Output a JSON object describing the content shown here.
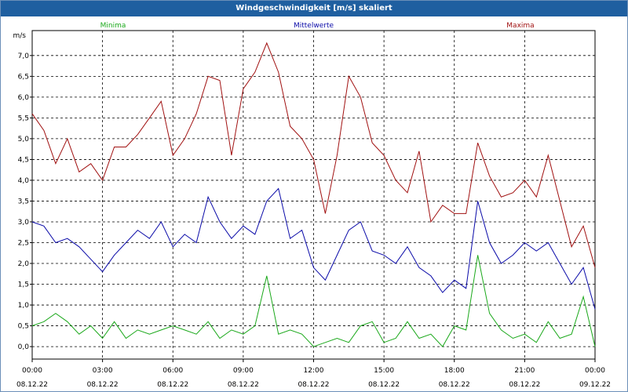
{
  "window": {
    "title": "Windgeschwindigkeit [m/s] skaliert"
  },
  "chart_data": {
    "type": "line",
    "title": "Windgeschwindigkeit [m/s] skaliert",
    "ylabel": "m/s",
    "xlabel": "",
    "ylim": [
      -0.3,
      7.6
    ],
    "xlim": [
      0,
      24
    ],
    "grid": true,
    "legend": "top",
    "yticks": [
      {
        "v": 0.0,
        "label": "0,0"
      },
      {
        "v": 0.5,
        "label": "0,5"
      },
      {
        "v": 1.0,
        "label": "1,0"
      },
      {
        "v": 1.5,
        "label": "1,5"
      },
      {
        "v": 2.0,
        "label": "2,0"
      },
      {
        "v": 2.5,
        "label": "2,5"
      },
      {
        "v": 3.0,
        "label": "3,0"
      },
      {
        "v": 3.5,
        "label": "3,5"
      },
      {
        "v": 4.0,
        "label": "4,0"
      },
      {
        "v": 4.5,
        "label": "4,5"
      },
      {
        "v": 5.0,
        "label": "5,0"
      },
      {
        "v": 5.5,
        "label": "5,5"
      },
      {
        "v": 6.0,
        "label": "6,0"
      },
      {
        "v": 6.5,
        "label": "6,5"
      },
      {
        "v": 7.0,
        "label": "7,0"
      }
    ],
    "xticks": [
      {
        "v": 0,
        "time": "00:00",
        "date": "08.12.22"
      },
      {
        "v": 3,
        "time": "03:00",
        "date": "08.12.22"
      },
      {
        "v": 6,
        "time": "06:00",
        "date": "08.12.22"
      },
      {
        "v": 9,
        "time": "09:00",
        "date": "08.12.22"
      },
      {
        "v": 12,
        "time": "12:00",
        "date": "08.12.22"
      },
      {
        "v": 15,
        "time": "15:00",
        "date": "08.12.22"
      },
      {
        "v": 18,
        "time": "18:00",
        "date": "08.12.22"
      },
      {
        "v": 21,
        "time": "21:00",
        "date": "08.12.22"
      },
      {
        "v": 24,
        "time": "00:00",
        "date": "09.12.22"
      }
    ],
    "series": [
      {
        "name": "Minima",
        "color": "#1aa81a",
        "x": [
          0,
          0.5,
          1,
          1.5,
          2,
          2.5,
          3,
          3.5,
          4,
          4.5,
          5,
          5.5,
          6,
          6.5,
          7,
          7.5,
          8,
          8.5,
          9,
          9.5,
          10,
          10.5,
          11,
          11.5,
          12,
          12.5,
          13,
          13.5,
          14,
          14.5,
          15,
          15.5,
          16,
          16.5,
          17,
          17.5,
          18,
          18.5,
          19,
          19.5,
          20,
          20.5,
          21,
          21.5,
          22,
          22.5,
          23,
          23.5,
          24
        ],
        "values": [
          0.5,
          0.6,
          0.8,
          0.6,
          0.3,
          0.5,
          0.2,
          0.6,
          0.2,
          0.4,
          0.3,
          0.4,
          0.5,
          0.4,
          0.3,
          0.6,
          0.2,
          0.4,
          0.3,
          0.5,
          1.7,
          0.3,
          0.4,
          0.3,
          0.0,
          0.1,
          0.2,
          0.1,
          0.5,
          0.6,
          0.1,
          0.2,
          0.6,
          0.2,
          0.3,
          0.0,
          0.5,
          0.4,
          2.2,
          0.8,
          0.4,
          0.2,
          0.3,
          0.1,
          0.6,
          0.2,
          0.3,
          1.2,
          0.0
        ]
      },
      {
        "name": "Mittelwerte",
        "color": "#0a0aa8",
        "x": [
          0,
          0.5,
          1,
          1.5,
          2,
          2.5,
          3,
          3.5,
          4,
          4.5,
          5,
          5.5,
          6,
          6.5,
          7,
          7.5,
          8,
          8.5,
          9,
          9.5,
          10,
          10.5,
          11,
          11.5,
          12,
          12.5,
          13,
          13.5,
          14,
          14.5,
          15,
          15.5,
          16,
          16.5,
          17,
          17.5,
          18,
          18.5,
          19,
          19.5,
          20,
          20.5,
          21,
          21.5,
          22,
          22.5,
          23,
          23.5,
          24
        ],
        "values": [
          3.0,
          2.9,
          2.5,
          2.6,
          2.4,
          2.1,
          1.8,
          2.2,
          2.5,
          2.8,
          2.6,
          3.0,
          2.4,
          2.7,
          2.5,
          3.6,
          3.0,
          2.6,
          2.9,
          2.7,
          3.5,
          3.8,
          2.6,
          2.8,
          1.9,
          1.6,
          2.2,
          2.8,
          3.0,
          2.3,
          2.2,
          2.0,
          2.4,
          1.9,
          1.7,
          1.3,
          1.6,
          1.4,
          3.5,
          2.5,
          2.0,
          2.2,
          2.5,
          2.3,
          2.5,
          2.0,
          1.5,
          1.9,
          0.9
        ]
      },
      {
        "name": "Maxima",
        "color": "#a01010",
        "x": [
          0,
          0.5,
          1,
          1.5,
          2,
          2.5,
          3,
          3.5,
          4,
          4.5,
          5,
          5.5,
          6,
          6.5,
          7,
          7.5,
          8,
          8.5,
          9,
          9.5,
          10,
          10.5,
          11,
          11.5,
          12,
          12.5,
          13,
          13.5,
          14,
          14.5,
          15,
          15.5,
          16,
          16.5,
          17,
          17.5,
          18,
          18.5,
          19,
          19.5,
          20,
          20.5,
          21,
          21.5,
          22,
          22.5,
          23,
          23.5,
          24
        ],
        "values": [
          5.6,
          5.2,
          4.4,
          5.0,
          4.2,
          4.4,
          4.0,
          4.8,
          4.8,
          5.1,
          5.5,
          5.9,
          4.6,
          5.0,
          5.6,
          6.5,
          6.4,
          4.6,
          6.2,
          6.6,
          7.3,
          6.6,
          5.3,
          5.0,
          4.5,
          3.2,
          4.6,
          6.5,
          6.0,
          4.9,
          4.6,
          4.0,
          3.7,
          4.7,
          3.0,
          3.4,
          3.2,
          3.2,
          4.9,
          4.1,
          3.6,
          3.7,
          4.0,
          3.6,
          4.6,
          3.5,
          2.4,
          2.9,
          1.9
        ]
      }
    ]
  }
}
